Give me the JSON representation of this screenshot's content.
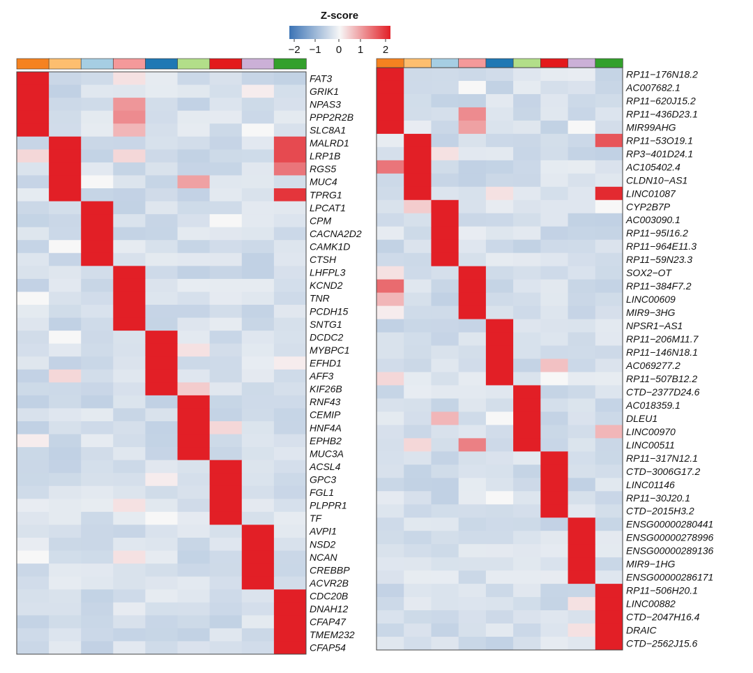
{
  "chart_data": {
    "type": "heatmap",
    "title": "Z-score",
    "colorbar": {
      "ticks": [
        "−2",
        "−1",
        "0",
        "1",
        "2"
      ],
      "range": [
        -2,
        2
      ],
      "low_color": "#3b73b5",
      "mid_color": "#f7f7f7",
      "high_color": "#e21f26"
    },
    "cluster_colors": [
      "#f58220",
      "#fdbe6f",
      "#a6cee3",
      "#f4999a",
      "#1f78b4",
      "#b2de89",
      "#e31a1c",
      "#cbb0d7",
      "#33a02c"
    ],
    "panels": [
      {
        "name": "left",
        "genes": [
          "FAT3",
          "GRIK1",
          "NPAS3",
          "PPP2R2B",
          "SLC8A1",
          "MALRD1",
          "LRP1B",
          "RGS5",
          "MUC4",
          "TPRG1",
          "LPCAT1",
          "CPM",
          "CACNA2D2",
          "CAMK1D",
          "CTSH",
          "LHFPL3",
          "KCND2",
          "TNR",
          "PCDH15",
          "SNTG1",
          "DCDC2",
          "MYBPC1",
          "EFHD1",
          "AFF3",
          "KIF26B",
          "RNF43",
          "CEMIP",
          "HNF4A",
          "EPHB2",
          "MUC3A",
          "ACSL4",
          "GPC3",
          "FGL1",
          "PLPPR1",
          "TF",
          "AVPI1",
          "NSD2",
          "NCAN",
          "CREBBP",
          "ACVR2B",
          "CDC20B",
          "DNAH12",
          "CFAP47",
          "TMEM232",
          "CFAP54"
        ],
        "high_cluster": [
          0,
          0,
          0,
          0,
          0,
          1,
          1,
          1,
          1,
          1,
          2,
          2,
          2,
          2,
          2,
          3,
          3,
          3,
          3,
          3,
          4,
          4,
          4,
          4,
          4,
          5,
          5,
          5,
          5,
          5,
          6,
          6,
          6,
          6,
          6,
          7,
          7,
          7,
          7,
          7,
          8,
          8,
          8,
          8,
          8
        ],
        "accents": [
          {
            "row": 0,
            "col": 3,
            "z": 0.2
          },
          {
            "row": 1,
            "col": 7,
            "z": 0.1
          },
          {
            "row": 2,
            "col": 3,
            "z": 0.9
          },
          {
            "row": 3,
            "col": 3,
            "z": 1.0
          },
          {
            "row": 4,
            "col": 3,
            "z": 0.6
          },
          {
            "row": 4,
            "col": 7,
            "z": 0.0
          },
          {
            "row": 5,
            "col": 8,
            "z": 1.6
          },
          {
            "row": 6,
            "col": 0,
            "z": 0.3
          },
          {
            "row": 6,
            "col": 3,
            "z": 0.3
          },
          {
            "row": 6,
            "col": 8,
            "z": 1.6
          },
          {
            "row": 7,
            "col": 8,
            "z": 1.2
          },
          {
            "row": 8,
            "col": 2,
            "z": 0.0
          },
          {
            "row": 8,
            "col": 5,
            "z": 0.8
          },
          {
            "row": 9,
            "col": 1,
            "z": 1.7
          },
          {
            "row": 9,
            "col": 8,
            "z": 1.8
          },
          {
            "row": 11,
            "col": 6,
            "z": 0.0
          },
          {
            "row": 13,
            "col": 1,
            "z": 0.0
          },
          {
            "row": 17,
            "col": 0,
            "z": 0.0
          },
          {
            "row": 20,
            "col": 1,
            "z": 0.0
          },
          {
            "row": 21,
            "col": 5,
            "z": 0.2
          },
          {
            "row": 22,
            "col": 8,
            "z": 0.1
          },
          {
            "row": 23,
            "col": 1,
            "z": 0.3
          },
          {
            "row": 24,
            "col": 5,
            "z": 0.4
          },
          {
            "row": 27,
            "col": 6,
            "z": 0.3
          },
          {
            "row": 28,
            "col": 0,
            "z": 0.1
          },
          {
            "row": 31,
            "col": 4,
            "z": 0.1
          },
          {
            "row": 33,
            "col": 3,
            "z": 0.2
          },
          {
            "row": 34,
            "col": 4,
            "z": 0.0
          },
          {
            "row": 37,
            "col": 0,
            "z": 0.0
          },
          {
            "row": 37,
            "col": 3,
            "z": 0.2
          }
        ]
      },
      {
        "name": "right",
        "genes": [
          "RP11−176N18.2",
          "AC007682.1",
          "RP11−620J15.2",
          "RP11−436D23.1",
          "MIR99AHG",
          "RP11−53O19.1",
          "RP3−401D24.1",
          "AC105402.4",
          "CLDN10−AS1",
          "LINC01087",
          "CYP2B7P",
          "AC003090.1",
          "RP11−95I16.2",
          "RP11−964E11.3",
          "RP11−59N23.3",
          "SOX2−OT",
          "RP11−384F7.2",
          "LINC00609",
          "MIR9−3HG",
          "NPSR1−AS1",
          "RP11−206M11.7",
          "RP11−146N18.1",
          "AC069277.2",
          "RP11−507B12.2",
          "CTD−2377D24.6",
          "AC018359.1",
          "DLEU1",
          "LINC00970",
          "LINC00511",
          "RP11−317N12.1",
          "CTD−3006G17.2",
          "LINC01146",
          "RP11−30J20.1",
          "CTD−2015H3.2",
          "ENSG00000280441",
          "ENSG00000278996",
          "ENSG00000289136",
          "MIR9−1HG",
          "ENSG00000286171",
          "RP11−506H20.1",
          "LINC00882",
          "CTD−2047H16.4",
          "DRAIC",
          "CTD−2562J15.6"
        ],
        "high_cluster": [
          0,
          0,
          0,
          0,
          0,
          1,
          1,
          1,
          1,
          1,
          2,
          2,
          2,
          2,
          2,
          3,
          3,
          3,
          3,
          4,
          4,
          4,
          4,
          4,
          5,
          5,
          5,
          5,
          5,
          6,
          6,
          6,
          6,
          6,
          7,
          7,
          7,
          7,
          7,
          8,
          8,
          8,
          8,
          8
        ],
        "accents": [
          {
            "row": 1,
            "col": 3,
            "z": 0.0
          },
          {
            "row": 3,
            "col": 3,
            "z": 1.0
          },
          {
            "row": 4,
            "col": 3,
            "z": 0.8
          },
          {
            "row": 4,
            "col": 7,
            "z": 0.0
          },
          {
            "row": 5,
            "col": 8,
            "z": 1.5
          },
          {
            "row": 6,
            "col": 2,
            "z": 0.2
          },
          {
            "row": 7,
            "col": 0,
            "z": 1.2
          },
          {
            "row": 9,
            "col": 1,
            "z": 1.8
          },
          {
            "row": 9,
            "col": 4,
            "z": 0.2
          },
          {
            "row": 9,
            "col": 8,
            "z": 1.9
          },
          {
            "row": 10,
            "col": 1,
            "z": 0.4
          },
          {
            "row": 10,
            "col": 8,
            "z": 0.0
          },
          {
            "row": 15,
            "col": 0,
            "z": 0.2
          },
          {
            "row": 16,
            "col": 0,
            "z": 1.3
          },
          {
            "row": 17,
            "col": 0,
            "z": 0.6
          },
          {
            "row": 18,
            "col": 0,
            "z": 0.1
          },
          {
            "row": 22,
            "col": 6,
            "z": 0.5
          },
          {
            "row": 23,
            "col": 0,
            "z": 0.3
          },
          {
            "row": 23,
            "col": 6,
            "z": 0.0
          },
          {
            "row": 26,
            "col": 2,
            "z": 0.6
          },
          {
            "row": 26,
            "col": 4,
            "z": 0.0
          },
          {
            "row": 27,
            "col": 8,
            "z": 0.6
          },
          {
            "row": 28,
            "col": 1,
            "z": 0.3
          },
          {
            "row": 28,
            "col": 3,
            "z": 1.1
          },
          {
            "row": 28,
            "col": 6,
            "z": -0.5
          },
          {
            "row": 32,
            "col": 4,
            "z": 0.0
          },
          {
            "row": 40,
            "col": 7,
            "z": 0.2
          },
          {
            "row": 42,
            "col": 7,
            "z": 0.2
          }
        ]
      }
    ]
  }
}
